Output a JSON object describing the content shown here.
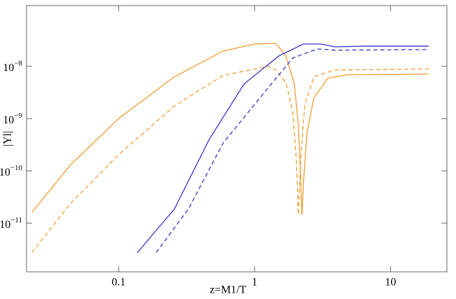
{
  "chart_data": {
    "type": "line",
    "x_label": "z=M1/T",
    "y_label": "|Yl|",
    "log_x": true,
    "log_y": true,
    "xlim": [
      0.021,
      26
    ],
    "ylim": [
      1.17e-12,
      1.45e-07
    ],
    "xticks": [
      0.1,
      1,
      10
    ],
    "yticks": [
      {
        "value": 1e-11,
        "label": "10−11"
      },
      {
        "value": 1e-10,
        "label": "10−10"
      },
      {
        "value": 1e-09,
        "label": "10−9"
      },
      {
        "value": 1e-08,
        "label": "10−8"
      }
    ],
    "series": [
      {
        "color": "#f39a2e",
        "dashed": false,
        "x": [
          0.023,
          0.044,
          0.1,
          0.257,
          0.587,
          1,
          1.43,
          1.7,
          1.96,
          2.1,
          2.18,
          2.23,
          2.31,
          2.43,
          2.73,
          3.45,
          4.92,
          19.1
        ],
        "values": [
          1.6e-11,
          1.28e-10,
          1e-09,
          6.3e-09,
          1.96e-08,
          2.67e-08,
          2.75e-08,
          1.58e-08,
          4.6e-09,
          7.4e-10,
          8.5e-11,
          1.45e-11,
          8.5e-11,
          5.4e-10,
          2.5e-09,
          5.9e-09,
          6.9e-09,
          7.1e-09
        ]
      },
      {
        "color": "#f39a2e",
        "dashed": true,
        "x": [
          0.023,
          0.044,
          0.1,
          0.257,
          0.587,
          1.27,
          1.43,
          1.7,
          1.91,
          2.03,
          2.1,
          2.18,
          2.34,
          2.73,
          3.89,
          19.1
        ],
        "values": [
          2.75e-12,
          2.34e-11,
          2.04e-10,
          1.74e-09,
          6.7e-09,
          1e-08,
          8.5e-09,
          4.9e-09,
          1.35e-09,
          1.58e-10,
          1.45e-11,
          1.58e-10,
          1.85e-09,
          6.3e-09,
          8.5e-09,
          8.9e-09
        ]
      },
      {
        "color": "#3333cc",
        "dashed": false,
        "x": [
          0.137,
          0.257,
          0.464,
          0.837,
          1.51,
          2.29,
          3.07,
          3.89,
          6.24,
          19.1
        ],
        "values": [
          2.7e-12,
          1.86e-11,
          4e-10,
          4.6e-09,
          1.58e-08,
          2.67e-08,
          2.67e-08,
          2.36e-08,
          2.43e-08,
          2.43e-08
        ]
      },
      {
        "color": "#3333cc",
        "dashed": true,
        "x": [
          0.189,
          0.326,
          0.587,
          1.27,
          1.91,
          2.9,
          3.89,
          19.1
        ],
        "values": [
          2.75e-12,
          1.86e-11,
          3.4e-10,
          4e-09,
          1.44e-08,
          2.15e-08,
          2.03e-08,
          2.09e-08
        ]
      }
    ]
  }
}
